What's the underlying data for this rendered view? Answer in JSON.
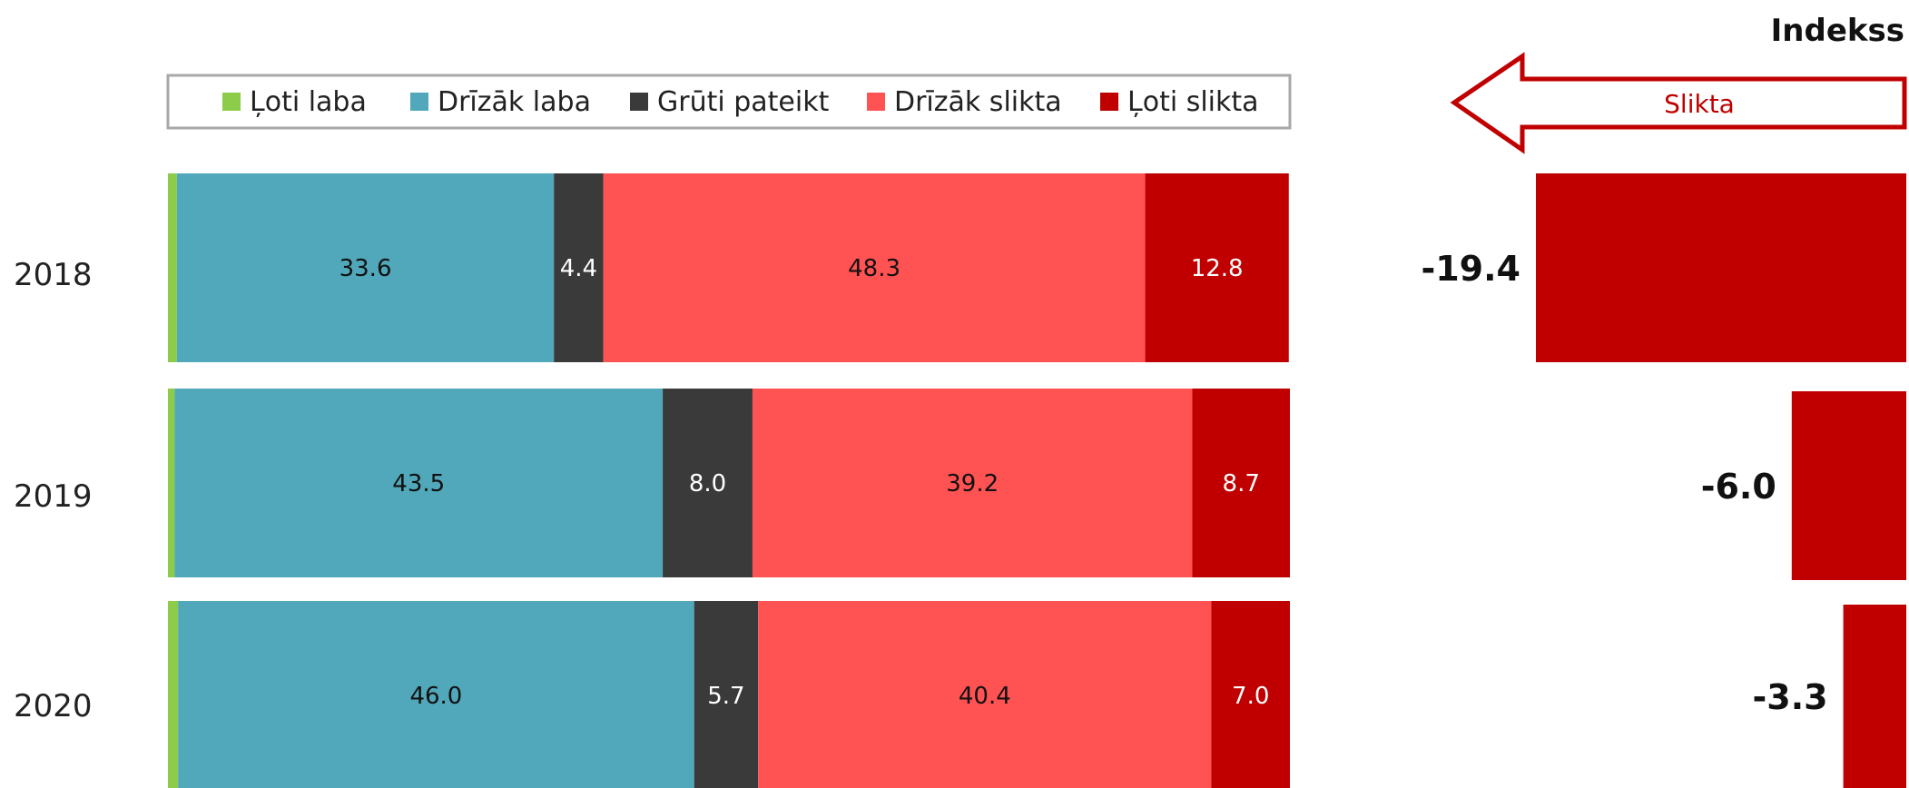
{
  "chart_data": {
    "type": "bar",
    "orientation": "horizontal",
    "stacked": true,
    "percent_scale": 100,
    "categories": [
      "2018",
      "2019",
      "2020"
    ],
    "series": [
      {
        "name": "Ļoti laba",
        "color": "#8DCB4A",
        "values": [
          0.8,
          0.6,
          0.9
        ]
      },
      {
        "name": "Drīzāk laba",
        "color": "#51A8BA",
        "values": [
          33.6,
          43.5,
          46.0
        ]
      },
      {
        "name": "Grūti pateikt",
        "color": "#3A3A3A",
        "values": [
          4.4,
          8.0,
          5.7
        ]
      },
      {
        "name": "Drīzāk slikta",
        "color": "#FF5252",
        "values": [
          48.3,
          39.2,
          40.4
        ]
      },
      {
        "name": "Ļoti slikta",
        "color": "#C00000",
        "values": [
          12.8,
          8.7,
          7.0
        ]
      }
    ],
    "data_labels": [
      [
        "0.8",
        "33.6",
        "4.4",
        "48.3",
        "12.8"
      ],
      [
        "0.6",
        "43.5",
        "8.0",
        "39.2",
        "8.7"
      ],
      [
        "0.9",
        "46.0",
        "5.7",
        "40.4",
        "7.0"
      ]
    ],
    "legend_position": "top",
    "grid": false,
    "index": {
      "title": "Indekss",
      "arrow_label": "Slikta",
      "color": "#C00000",
      "values": [
        -19.4,
        -6.0,
        -3.3
      ],
      "labels": [
        "-19.4",
        "-6.0",
        "-3.3"
      ]
    }
  }
}
